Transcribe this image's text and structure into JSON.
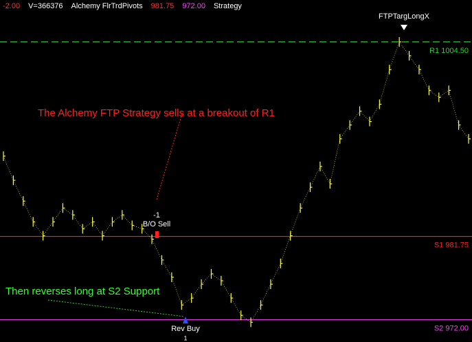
{
  "chart_data": {
    "type": "price-bars",
    "header": [
      {
        "text": "-2.00",
        "color": "#ff3030"
      },
      {
        "text": "V=366376",
        "color": "#ffffff"
      },
      {
        "text": "Alchemy FlrTrdPivots",
        "color": "#ffffff"
      },
      {
        "text": "981.75",
        "color": "#ff3030"
      },
      {
        "text": "972.00",
        "color": "#ff40ff"
      },
      {
        "text": "Strategy",
        "color": "#ffffff"
      }
    ],
    "color": "#ffff40",
    "ylim": [
      969.4,
      1009.4
    ],
    "values": [
      991.14,
      988.31,
      985.88,
      983.45,
      981.83,
      983.45,
      985.07,
      984.26,
      982.64,
      983.45,
      981.83,
      983.45,
      984.26,
      983.04,
      982.64,
      981.42,
      978.99,
      976.97,
      973.73,
      974.54,
      976.16,
      977.37,
      976.56,
      974.54,
      972.52,
      971.71,
      973.73,
      976.16,
      978.59,
      981.83,
      985.07,
      987.5,
      989.93,
      987.9,
      993.16,
      994.78,
      996.4,
      995.19,
      997.21,
      1001.26,
      1004.5,
      1002.88,
      1001.26,
      998.83,
      998.02,
      998.83,
      994.78,
      993.16
    ],
    "levels": [
      {
        "label": "R1 1004.50",
        "value": 1004.5,
        "color": "#30d030",
        "dashed": true
      },
      {
        "label": "S1 981.75",
        "value": 981.75,
        "color": "#ff2020",
        "dashed": false
      },
      {
        "label": "S2 972.00",
        "value": 972.0,
        "color": "#ff40ff",
        "dashed": false
      }
    ],
    "annotations": {
      "sell_note": "The Alchemy FTP Strategy sells at a breakout of R1",
      "buy_note": "Then reverses long at S2 Support",
      "sell_qty": "-1",
      "sell_label": "B/O Sell",
      "buy_label": "Rev Buy",
      "buy_qty": "1",
      "target_label": "FTPTargLongX"
    }
  }
}
